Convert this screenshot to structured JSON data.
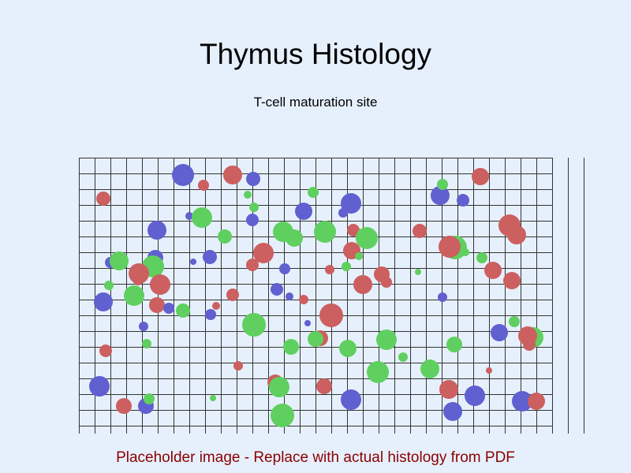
{
  "title": "Thymus Histology",
  "subtitle": "T-cell maturation site",
  "caption": "Placeholder image - Replace with actual histology from PDF",
  "colors": {
    "background": "#e6f0fd",
    "grid_line": "#333333",
    "caption_text": "#8b0000",
    "cell_blue": "#6060d0",
    "cell_red": "#cc5f5f",
    "cell_green": "#5fd05f"
  },
  "image": {
    "type": "placeholder-cell-pattern",
    "cell_count": 104,
    "cell_colors": [
      "cell_blue",
      "cell_red",
      "cell_green"
    ]
  }
}
